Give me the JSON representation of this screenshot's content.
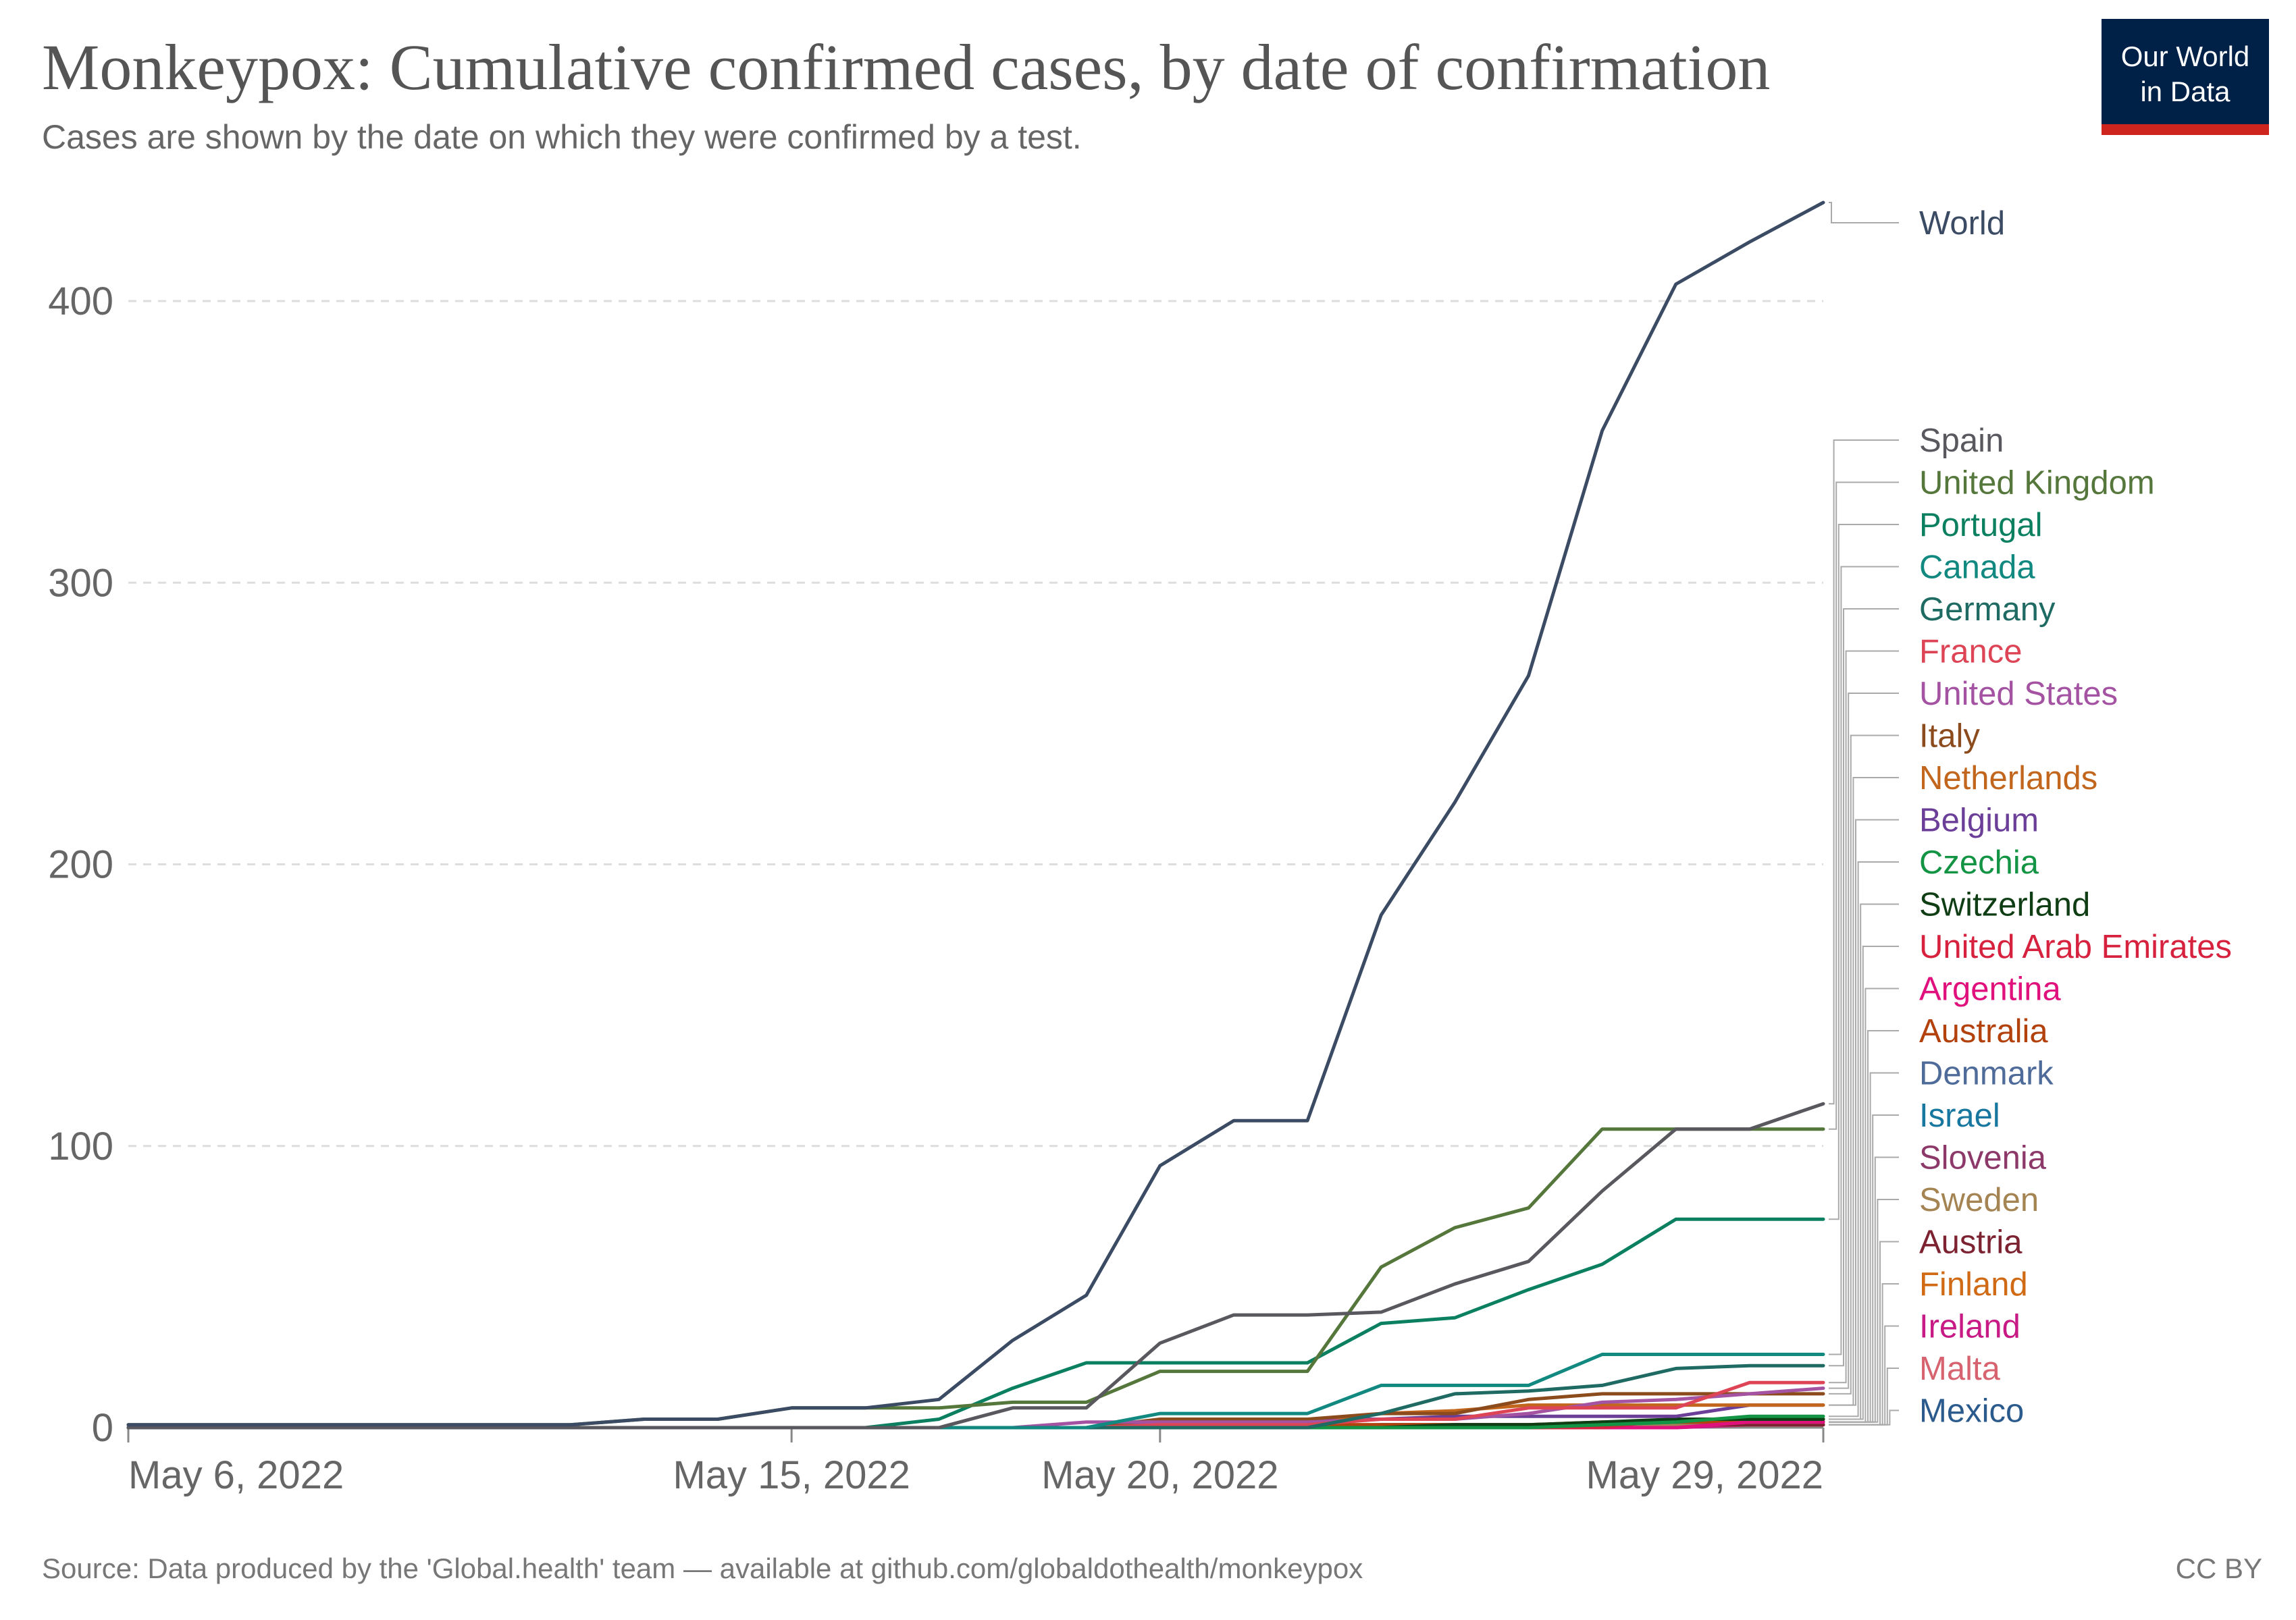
{
  "title": "Monkeypox: Cumulative confirmed cases, by date of confirmation",
  "subtitle": "Cases are shown by the date on which they were confirmed by a test.",
  "logo": {
    "line1": "Our World",
    "line2": "in Data",
    "bg_color": "#002147",
    "accent_color": "#ce261e"
  },
  "source": "Source: Data produced by the 'Global.health' team — available at github.com/globaldothealth/monkeypox",
  "license": "CC BY",
  "chart_data": {
    "type": "line",
    "title": "Monkeypox: Cumulative confirmed cases, by date of confirmation",
    "subtitle": "Cases are shown by the date on which they were confirmed by a test.",
    "x_type": "date",
    "xlim": [
      "2022-05-06",
      "2022-05-29"
    ],
    "ylim": [
      0,
      435
    ],
    "y_ticks": [
      0,
      100,
      200,
      300,
      400
    ],
    "x_ticks": [
      {
        "date": "2022-05-06",
        "label": "May 6, 2022"
      },
      {
        "date": "2022-05-15",
        "label": "May 15, 2022"
      },
      {
        "date": "2022-05-20",
        "label": "May 20, 2022"
      },
      {
        "date": "2022-05-29",
        "label": "May 29, 2022"
      }
    ],
    "grid": true,
    "legend_placement": "right (labels at line ends)",
    "x": [
      "2022-05-06",
      "2022-05-07",
      "2022-05-08",
      "2022-05-09",
      "2022-05-10",
      "2022-05-11",
      "2022-05-12",
      "2022-05-13",
      "2022-05-14",
      "2022-05-15",
      "2022-05-16",
      "2022-05-17",
      "2022-05-18",
      "2022-05-19",
      "2022-05-20",
      "2022-05-21",
      "2022-05-22",
      "2022-05-23",
      "2022-05-24",
      "2022-05-25",
      "2022-05-26",
      "2022-05-27",
      "2022-05-28",
      "2022-05-29"
    ],
    "series": [
      {
        "name": "World",
        "color": "#3b4b64",
        "values": [
          1,
          1,
          1,
          1,
          1,
          1,
          1,
          3,
          3,
          7,
          7,
          10,
          31,
          47,
          93,
          109,
          109,
          182,
          222,
          267,
          354,
          406,
          421,
          435
        ]
      },
      {
        "name": "Spain",
        "color": "#58585e",
        "values": [
          0,
          0,
          0,
          0,
          0,
          0,
          0,
          0,
          0,
          0,
          0,
          0,
          7,
          7,
          30,
          40,
          40,
          41,
          51,
          59,
          84,
          106,
          106,
          115
        ]
      },
      {
        "name": "United Kingdom",
        "color": "#55773b",
        "values": [
          1,
          1,
          1,
          1,
          1,
          1,
          1,
          3,
          3,
          7,
          7,
          7,
          9,
          9,
          20,
          20,
          20,
          57,
          71,
          78,
          106,
          106,
          106,
          106
        ]
      },
      {
        "name": "Portugal",
        "color": "#0b8060",
        "values": [
          0,
          0,
          0,
          0,
          0,
          0,
          0,
          0,
          0,
          0,
          0,
          3,
          14,
          23,
          23,
          23,
          23,
          37,
          39,
          49,
          58,
          74,
          74,
          74
        ]
      },
      {
        "name": "Canada",
        "color": "#128980",
        "values": [
          0,
          0,
          0,
          0,
          0,
          0,
          0,
          0,
          0,
          0,
          0,
          0,
          0,
          0,
          5,
          5,
          5,
          15,
          15,
          15,
          26,
          26,
          26,
          26
        ]
      },
      {
        "name": "Germany",
        "color": "#1f6a63",
        "values": [
          0,
          0,
          0,
          0,
          0,
          0,
          0,
          0,
          0,
          0,
          0,
          0,
          0,
          0,
          0,
          0,
          0,
          5,
          12,
          13,
          15,
          21,
          22,
          22
        ]
      },
      {
        "name": "France",
        "color": "#dd4455",
        "values": [
          0,
          0,
          0,
          0,
          0,
          0,
          0,
          0,
          0,
          0,
          0,
          0,
          0,
          0,
          1,
          1,
          1,
          3,
          3,
          7,
          7,
          7,
          16,
          16
        ]
      },
      {
        "name": "United States",
        "color": "#a453a2",
        "values": [
          0,
          0,
          0,
          0,
          0,
          0,
          0,
          0,
          0,
          0,
          0,
          0,
          0,
          2,
          2,
          2,
          2,
          3,
          3,
          5,
          9,
          10,
          12,
          14
        ]
      },
      {
        "name": "Italy",
        "color": "#8c4b1d",
        "values": [
          0,
          0,
          0,
          0,
          0,
          0,
          0,
          0,
          0,
          0,
          0,
          0,
          0,
          0,
          3,
          3,
          3,
          5,
          5,
          10,
          12,
          12,
          12,
          12
        ]
      },
      {
        "name": "Netherlands",
        "color": "#c1661c",
        "values": [
          0,
          0,
          0,
          0,
          0,
          0,
          0,
          0,
          0,
          0,
          0,
          0,
          0,
          0,
          1,
          1,
          1,
          5,
          6,
          8,
          8,
          8,
          8,
          8
        ]
      },
      {
        "name": "Belgium",
        "color": "#6b3f98",
        "values": [
          0,
          0,
          0,
          0,
          0,
          0,
          0,
          0,
          0,
          0,
          0,
          0,
          0,
          0,
          2,
          3,
          3,
          3,
          4,
          4,
          4,
          4,
          8,
          8
        ]
      },
      {
        "name": "Czechia",
        "color": "#129444",
        "values": [
          0,
          0,
          0,
          0,
          0,
          0,
          0,
          0,
          0,
          0,
          0,
          0,
          0,
          0,
          0,
          0,
          0,
          0,
          0,
          0,
          1,
          2,
          4,
          4
        ]
      },
      {
        "name": "Switzerland",
        "color": "#0f3d14",
        "values": [
          0,
          0,
          0,
          0,
          0,
          0,
          0,
          0,
          0,
          0,
          0,
          0,
          0,
          0,
          0,
          0,
          0,
          0,
          1,
          1,
          2,
          3,
          3,
          3
        ]
      },
      {
        "name": "United Arab Emirates",
        "color": "#d6223f",
        "values": [
          0,
          0,
          0,
          0,
          0,
          0,
          0,
          0,
          0,
          0,
          0,
          0,
          0,
          0,
          0,
          0,
          0,
          0,
          0,
          0,
          0,
          3,
          3,
          3
        ]
      },
      {
        "name": "Argentina",
        "color": "#e0117d",
        "values": [
          0,
          0,
          0,
          0,
          0,
          0,
          0,
          0,
          0,
          0,
          0,
          0,
          0,
          0,
          0,
          0,
          0,
          0,
          0,
          0,
          0,
          0,
          2,
          2
        ]
      },
      {
        "name": "Australia",
        "color": "#b2410c",
        "values": [
          0,
          0,
          0,
          0,
          0,
          0,
          0,
          0,
          0,
          0,
          0,
          0,
          0,
          0,
          1,
          1,
          1,
          1,
          1,
          1,
          2,
          2,
          2,
          2
        ]
      },
      {
        "name": "Denmark",
        "color": "#4e6b99",
        "values": [
          0,
          0,
          0,
          0,
          0,
          0,
          0,
          0,
          0,
          0,
          0,
          0,
          0,
          0,
          0,
          0,
          0,
          1,
          1,
          1,
          1,
          2,
          2,
          2
        ]
      },
      {
        "name": "Israel",
        "color": "#18779e",
        "values": [
          0,
          0,
          0,
          0,
          0,
          0,
          0,
          0,
          0,
          0,
          0,
          0,
          0,
          0,
          0,
          0,
          0,
          0,
          1,
          1,
          1,
          2,
          2,
          2
        ]
      },
      {
        "name": "Slovenia",
        "color": "#8c3969",
        "values": [
          0,
          0,
          0,
          0,
          0,
          0,
          0,
          0,
          0,
          0,
          0,
          0,
          0,
          0,
          0,
          0,
          0,
          0,
          1,
          1,
          1,
          2,
          2,
          2
        ]
      },
      {
        "name": "Sweden",
        "color": "#a58453",
        "values": [
          0,
          0,
          0,
          0,
          0,
          0,
          0,
          0,
          0,
          0,
          0,
          0,
          0,
          0,
          1,
          1,
          1,
          1,
          1,
          1,
          1,
          1,
          2,
          2
        ]
      },
      {
        "name": "Austria",
        "color": "#7c2230",
        "values": [
          0,
          0,
          0,
          0,
          0,
          0,
          0,
          0,
          0,
          0,
          0,
          0,
          0,
          0,
          0,
          0,
          0,
          1,
          1,
          1,
          1,
          1,
          1,
          1
        ]
      },
      {
        "name": "Finland",
        "color": "#d16a15",
        "values": [
          0,
          0,
          0,
          0,
          0,
          0,
          0,
          0,
          0,
          0,
          0,
          0,
          0,
          0,
          0,
          0,
          0,
          0,
          0,
          0,
          0,
          1,
          1,
          1
        ]
      },
      {
        "name": "Ireland",
        "color": "#c71a84",
        "values": [
          0,
          0,
          0,
          0,
          0,
          0,
          0,
          0,
          0,
          0,
          0,
          0,
          0,
          0,
          0,
          0,
          0,
          0,
          0,
          0,
          0,
          0,
          1,
          1
        ]
      },
      {
        "name": "Malta",
        "color": "#d6636f",
        "values": [
          0,
          0,
          0,
          0,
          0,
          0,
          0,
          0,
          0,
          0,
          0,
          0,
          0,
          0,
          0,
          0,
          0,
          0,
          0,
          0,
          0,
          1,
          1,
          1
        ]
      },
      {
        "name": "Mexico",
        "color": "#2b5b8c",
        "values": [
          0,
          0,
          0,
          0,
          0,
          0,
          0,
          0,
          0,
          0,
          0,
          0,
          0,
          0,
          0,
          0,
          0,
          0,
          0,
          0,
          0,
          1,
          1,
          1
        ]
      }
    ]
  }
}
